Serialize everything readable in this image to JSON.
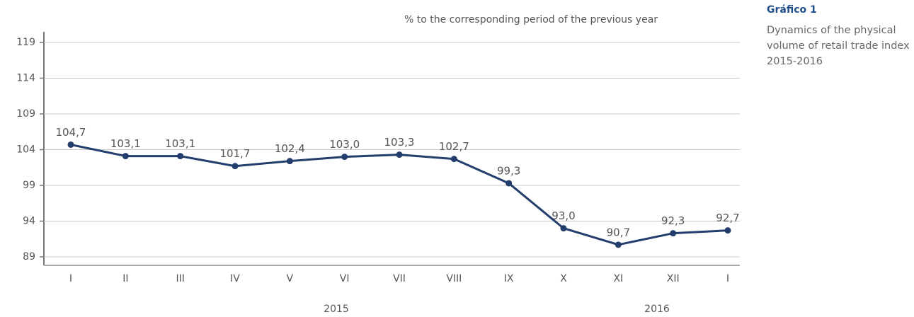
{
  "chart_data": {
    "type": "line",
    "subtitle": "% to the corresponding period of the previous year",
    "side_title": "Gráfico 1",
    "side_caption": "Dynamics of the physical volume of retail trade index 2015-2016",
    "categories": [
      "I",
      "II",
      "III",
      "IV",
      "V",
      "VI",
      "VII",
      "VIII",
      "IX",
      "X",
      "XI",
      "XII",
      "I"
    ],
    "groups": [
      "2015",
      "2016"
    ],
    "values": [
      104.7,
      103.1,
      103.1,
      101.7,
      102.4,
      103.0,
      103.3,
      102.7,
      99.3,
      93.0,
      90.7,
      92.3,
      92.7
    ],
    "value_labels": [
      "104,7",
      "103,1",
      "103,1",
      "101,7",
      "102,4",
      "103,0",
      "103,3",
      "102,7",
      "99,3",
      "93,0",
      "90,7",
      "92,3",
      "92,7"
    ],
    "color": "#233e6c",
    "ylim": [
      89,
      119
    ],
    "yticks": [
      89,
      94,
      99,
      104,
      109,
      114,
      119
    ],
    "grid": true
  }
}
